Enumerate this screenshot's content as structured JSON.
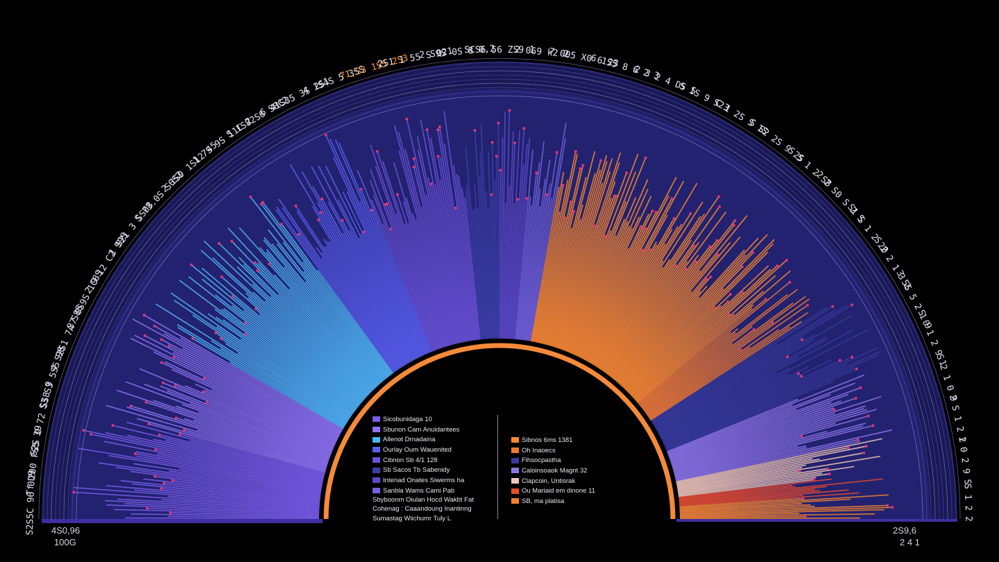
{
  "chart_data": {
    "type": "bar",
    "layout": "radial-semicircle",
    "title": "",
    "arc_start_deg": 180,
    "arc_end_deg": 0,
    "tick_labels": [
      "S2S5C 96 0D9",
      "Tf 200 FS5 39",
      "S2S O 72 SS8 9",
      "S3 S3 5S5 98",
      "4 S2S1 7A S8S",
      "37 0S9S 1C8S",
      "2 9 12 C2 99S",
      "1 S21 3 SS08",
      "S 73.0S S6S2",
      "2 1S9 1S12 45",
      "1 7S 9S 11C 2",
      "S 1S82S6 S8C2",
      "6 41S35 3S 2S1",
      "4 1S4S 5 3SS",
      "71,S3 1S5 2S3",
      "2S1 1 55 S Q21",
      "2 S9S 0S 8 0,2",
      "SCS6 56 ZS9 1",
      "2 069 k2 2",
      "7 005 X0 6 23",
      "6 155 8 6 2 3",
      "2 3 2 4 D5 S",
      "S 1S 9 S23",
      "C 1 2S S 1S",
      "S S2 2S 9 2S",
      "S 5 1 2 S8",
      "2 2 S0 S 2 S",
      "S1 S 1 2 20",
      "S 2 2 1 3 2",
      "3 5S 5 2 1 9",
      "S 0 1 2 9 1",
      "S 2 1 0 9",
      "2 S 1 2 2",
      "1 0 2 9 S",
      "S 1 2 2"
    ],
    "highlight_ticks": [
      14
    ],
    "series": [
      {
        "name": "Sicobunidaga 10",
        "color": "#7a5ce8",
        "start_deg": 180,
        "end_deg": 165,
        "peak": 0.9
      },
      {
        "name": "Sbunon Cam Anuidantees",
        "color": "#8f72f2",
        "start_deg": 165,
        "end_deg": 150,
        "peak": 0.86
      },
      {
        "name": "Allenot Drnadaina",
        "color": "#4fb6f5",
        "start_deg": 150,
        "end_deg": 126,
        "peak": 0.82
      },
      {
        "name": "Ourlay Oum Wauenited",
        "color": "#5a5ef0",
        "start_deg": 126,
        "end_deg": 112,
        "peak": 0.87
      },
      {
        "name": "Cibnon Sb 4/1 128",
        "color": "#6a52d8",
        "start_deg": 112,
        "end_deg": 96,
        "peak": 0.83
      },
      {
        "name": "Sb Sacos Tb Sabenidy",
        "color": "#3c3fa8",
        "start_deg": 96,
        "end_deg": 90,
        "peak": 0.8
      },
      {
        "name": "Intenad Onates Siwerms ha",
        "color": "#5d48c6",
        "start_deg": 90,
        "end_deg": 85,
        "peak": 0.82
      },
      {
        "name": "Sanbla Wams Cami Pab",
        "color": "#7461dd",
        "start_deg": 85,
        "end_deg": 80,
        "peak": 0.8
      },
      {
        "name": "Sibnos 6ms 1381",
        "color": "#ff8a2a",
        "start_deg": 80,
        "end_deg": 40,
        "peak": 0.76
      },
      {
        "name": "Oh Inaoecs",
        "color": "#f07a30",
        "start_deg": 40,
        "end_deg": 33,
        "peak": 0.72
      },
      {
        "name": "Fihsocpastha",
        "color": "#363a9a",
        "start_deg": 33,
        "end_deg": 22,
        "peak": 0.85
      },
      {
        "name": "Caloinsoaok Magnt 32",
        "color": "#8d74e6",
        "start_deg": 22,
        "end_deg": 12,
        "peak": 0.8
      },
      {
        "name": "Clapcoin, Untisrak",
        "color": "#f0c6b4",
        "start_deg": 12,
        "end_deg": 7,
        "peak": 0.78
      },
      {
        "name": "Ou Mariaid em dinone 11",
        "color": "#e84a2a",
        "start_deg": 7,
        "end_deg": 4,
        "peak": 0.74
      },
      {
        "name": "SB, ma platisa",
        "color": "#f5822e",
        "start_deg": 4,
        "end_deg": 0,
        "peak": 0.76
      }
    ]
  },
  "legend": {
    "left_items": [
      {
        "label": "Sicobunidaga 10",
        "color": "#7a5ce8"
      },
      {
        "label": "Sbunon Cam Anuidantees",
        "color": "#8f72f2"
      },
      {
        "label": "Allenot Drnadaina",
        "color": "#4fb6f5"
      },
      {
        "label": "Ourlay Oum Wauenited",
        "color": "#5a5ef0"
      },
      {
        "label": "Cibnon Sb 4/1 128",
        "color": "#6a52d8"
      },
      {
        "label": "Sb Sacos Tb Sabenidy",
        "color": "#3c3fa8"
      },
      {
        "label": "Intenad Onates Siwerms ha",
        "color": "#5d48c6"
      },
      {
        "label": "Sanbla Wams Cami Pab",
        "color": "#7461dd"
      }
    ],
    "left_notes": [
      "Sbyboonm Oiulan Hocd Wakbt Fat",
      "Cohenag : Caaandoung Inantinng",
      "Sumastag Wiichumr Tuly L"
    ],
    "right_items": [
      {
        "label": "Sibnos 6ms 1381",
        "color": "#ff8a2a"
      },
      {
        "label": "Oh Inaoecs",
        "color": "#f07a30"
      },
      {
        "label": "Fihsocpastha",
        "color": "#363a9a"
      },
      {
        "label": "Caloinsoaok Magnt 32",
        "color": "#8d74e6"
      },
      {
        "label": "Clapcoin, Untisrak",
        "color": "#f0c6b4"
      },
      {
        "label": "Ou Mariaid em dinone 11",
        "color": "#e84a2a"
      },
      {
        "label": "SB, ma platisa",
        "color": "#f5822e"
      }
    ]
  },
  "corners": {
    "bottom_left_top": "4S0,96",
    "bottom_left_bottom": "100G",
    "bottom_right_top": "2S9,6",
    "bottom_right_bottom": "2 4 1"
  },
  "colors": {
    "background": "#000000",
    "inner_ring": "#f58a3a",
    "accent_magenta": "#ff3a78",
    "label_text": "#e6e1f5",
    "label_highlight": "#ff9a3c"
  }
}
